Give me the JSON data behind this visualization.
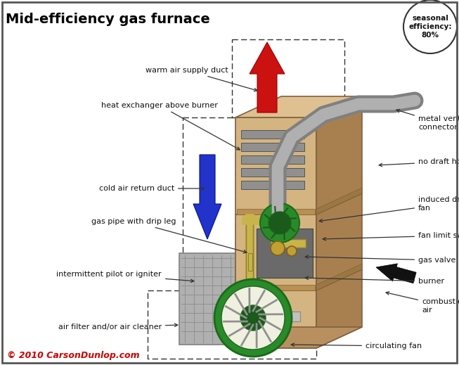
{
  "title": "Mid-efficiency gas furnace",
  "title_fontsize": 14,
  "title_fontweight": "bold",
  "copyright": "© 2010 CarsonDunlop.com",
  "copyright_color": "#cc0000",
  "efficiency_text": "seasonal\nefficiency:\n80%",
  "furnace_front_color": "#c8a87a",
  "furnace_top_color": "#dfc090",
  "furnace_side_color": "#a88050",
  "furnace_edge_color": "#806040",
  "heat_exchanger_color": "#9a9a9a",
  "fan_green": "#2a8a2a",
  "fan_dark": "#1a6a1a",
  "pipe_color": "#c8b44a",
  "pipe_edge": "#908030",
  "vent_outer": "#808080",
  "vent_inner": "#aaaaaa",
  "dashed_color": "#333333",
  "red_arrow": "#cc1111",
  "blue_arrow": "#2233cc",
  "filter_color": "#b0b0b0",
  "filter_edge": "#808080"
}
